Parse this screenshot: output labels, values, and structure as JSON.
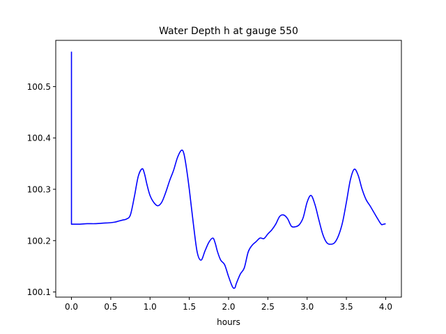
{
  "chart_data": {
    "type": "line",
    "title": "Water Depth h at gauge 550",
    "xlabel": "hours",
    "ylabel": "",
    "xlim": [
      -0.2,
      4.2
    ],
    "ylim": [
      100.09,
      100.59
    ],
    "x_ticks": [
      0.0,
      0.5,
      1.0,
      1.5,
      2.0,
      2.5,
      3.0,
      3.5,
      4.0
    ],
    "x_tick_labels": [
      "0.0",
      "0.5",
      "1.0",
      "1.5",
      "2.0",
      "2.5",
      "3.0",
      "3.5",
      "4.0"
    ],
    "y_ticks": [
      100.1,
      100.2,
      100.3,
      100.4,
      100.5
    ],
    "y_tick_labels": [
      "100.1",
      "100.2",
      "100.3",
      "100.4",
      "100.5"
    ],
    "grid": false,
    "legend": "none",
    "series": [
      {
        "color": "#0000ff",
        "x": [
          0.0,
          0.0,
          0.0,
          0.1,
          0.2,
          0.3,
          0.4,
          0.5,
          0.55,
          0.6,
          0.65,
          0.7,
          0.75,
          0.8,
          0.85,
          0.9,
          0.93,
          0.96,
          1.0,
          1.05,
          1.1,
          1.15,
          1.2,
          1.25,
          1.3,
          1.35,
          1.4,
          1.43,
          1.46,
          1.5,
          1.55,
          1.6,
          1.65,
          1.7,
          1.75,
          1.8,
          1.83,
          1.86,
          1.9,
          1.95,
          2.0,
          2.05,
          2.08,
          2.1,
          2.15,
          2.2,
          2.25,
          2.3,
          2.35,
          2.4,
          2.45,
          2.5,
          2.55,
          2.6,
          2.65,
          2.7,
          2.75,
          2.8,
          2.85,
          2.9,
          2.95,
          3.0,
          3.05,
          3.1,
          3.15,
          3.2,
          3.25,
          3.3,
          3.35,
          3.4,
          3.45,
          3.5,
          3.55,
          3.6,
          3.65,
          3.7,
          3.75,
          3.8,
          3.85,
          3.9,
          3.95,
          4.0
        ],
        "y": [
          100.568,
          100.232,
          100.232,
          100.232,
          100.233,
          100.233,
          100.234,
          100.235,
          100.236,
          100.238,
          100.24,
          100.242,
          100.25,
          100.285,
          100.325,
          100.34,
          100.33,
          100.31,
          100.288,
          100.274,
          100.268,
          100.275,
          100.294,
          100.317,
          100.337,
          100.362,
          100.376,
          100.37,
          100.345,
          100.3,
          100.235,
          100.178,
          100.162,
          100.18,
          100.197,
          100.205,
          100.195,
          100.178,
          100.162,
          100.153,
          100.13,
          100.11,
          100.108,
          100.117,
          100.135,
          100.147,
          100.178,
          100.191,
          100.198,
          100.205,
          100.204,
          100.213,
          100.221,
          100.232,
          100.247,
          100.25,
          100.243,
          100.228,
          100.227,
          100.231,
          100.245,
          100.275,
          100.288,
          100.27,
          100.24,
          100.212,
          100.196,
          100.193,
          100.196,
          100.21,
          100.235,
          100.275,
          100.318,
          100.339,
          100.327,
          100.3,
          100.28,
          100.268,
          100.255,
          100.242,
          100.231,
          100.233
        ]
      }
    ]
  }
}
